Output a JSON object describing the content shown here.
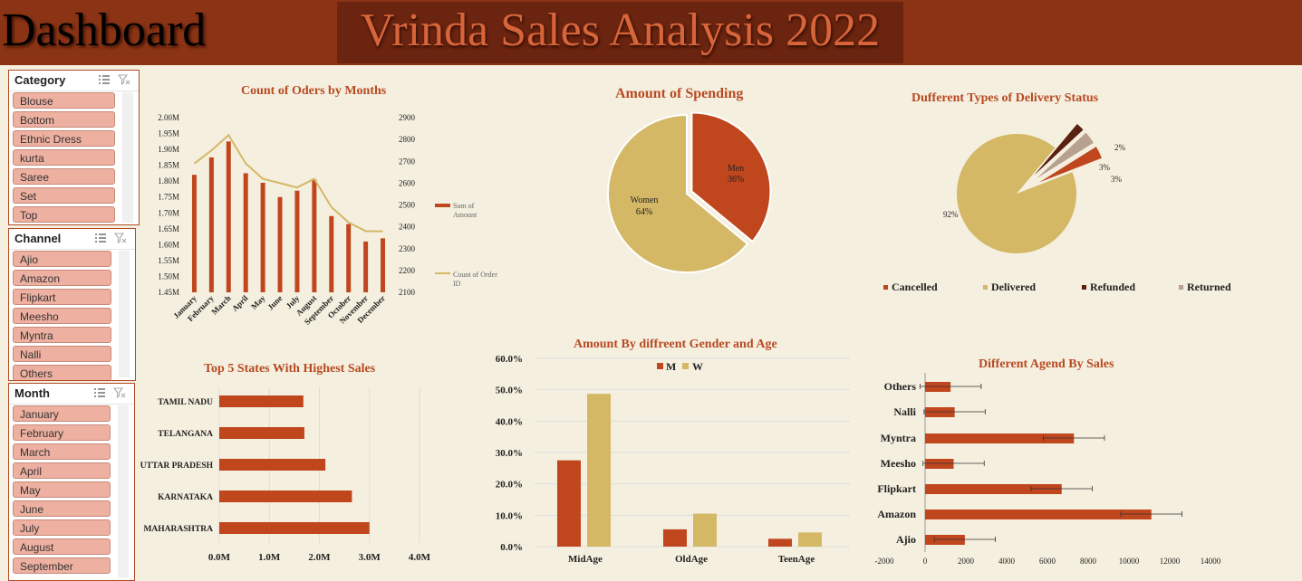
{
  "header": {
    "dashboard_label": "Dashboard",
    "title": "Vrinda Sales Analysis 2022"
  },
  "colors": {
    "rust": "#c0461e",
    "tan": "#d4b866",
    "dark": "#5a2010",
    "grey": "#b8a090",
    "header": "#8b3415",
    "item": "#eeb0a0"
  },
  "slicers": {
    "category": {
      "title": "Category",
      "items": [
        "Blouse",
        "Bottom",
        "Ethnic Dress",
        "kurta",
        "Saree",
        "Set",
        "Top"
      ]
    },
    "channel": {
      "title": "Channel",
      "items": [
        "Ajio",
        "Amazon",
        "Flipkart",
        "Meesho",
        "Myntra",
        "Nalli",
        "Others"
      ]
    },
    "month": {
      "title": "Month",
      "items": [
        "January",
        "February",
        "March",
        "April",
        "May",
        "June",
        "July",
        "August",
        "September"
      ]
    }
  },
  "chart_data": [
    {
      "type": "bar",
      "title": "Count of Oders by Months",
      "categories": [
        "January",
        "February",
        "March",
        "April",
        "May",
        "June",
        "July",
        "August",
        "September",
        "October",
        "November",
        "December"
      ],
      "series": [
        {
          "name": "Sum of Amount",
          "type": "bar",
          "axis": "left",
          "values": [
            1.82,
            1.875,
            1.925,
            1.825,
            1.795,
            1.75,
            1.77,
            1.805,
            1.69,
            1.665,
            1.61,
            1.62
          ]
        },
        {
          "name": "Count of Order ID",
          "type": "line",
          "axis": "right",
          "values": [
            2690,
            2750,
            2820,
            2690,
            2620,
            2600,
            2580,
            2620,
            2490,
            2420,
            2380,
            2380
          ]
        }
      ],
      "y_left": {
        "ticks": [
          "1.45M",
          "1.50M",
          "1.55M",
          "1.60M",
          "1.65M",
          "1.70M",
          "1.75M",
          "1.80M",
          "1.85M",
          "1.90M",
          "1.95M",
          "2.00M"
        ],
        "ylim": [
          1.45,
          2.0
        ]
      },
      "y_right": {
        "ticks": [
          "2100",
          "2200",
          "2300",
          "2400",
          "2500",
          "2600",
          "2700",
          "2800",
          "2900"
        ],
        "ylim": [
          2100,
          2900
        ]
      },
      "legend": [
        {
          "lines": [
            "Sum of",
            "Amount"
          ]
        },
        {
          "lines": [
            "Count of Order",
            "ID"
          ]
        }
      ]
    },
    {
      "type": "pie",
      "title": "Amount of Spending",
      "slices": [
        {
          "label": "Men",
          "pct": "36%",
          "value": 36
        },
        {
          "label": "Women",
          "pct": "64%",
          "value": 64
        }
      ]
    },
    {
      "type": "pie",
      "title": "Dufferent Types of Delivery Status",
      "slices": [
        {
          "label": "Delivered",
          "pct": "92%",
          "value": 92
        },
        {
          "label": "Cancelled",
          "pct": "3%",
          "value": 3
        },
        {
          "label": "Returned",
          "pct": "3%",
          "value": 3
        },
        {
          "label": "Refunded",
          "pct": "2%",
          "value": 2
        }
      ],
      "legend": [
        "Cancelled",
        "Delivered",
        "Refunded",
        "Returned"
      ]
    },
    {
      "type": "bar",
      "orientation": "horizontal",
      "title": "Top 5 States With Highest Sales",
      "categories": [
        "TAMIL NADU",
        "TELANGANA",
        "UTTAR PRADESH",
        "KARNATAKA",
        "MAHARASHTRA"
      ],
      "values": [
        1.68,
        1.7,
        2.12,
        2.65,
        3.0
      ],
      "ticks": [
        "0.0M",
        "1.0M",
        "2.0M",
        "3.0M",
        "4.0M"
      ],
      "xlim": [
        0,
        4
      ]
    },
    {
      "type": "bar",
      "title": "Amount By diffreent Gender and Age",
      "categories": [
        "MidAge",
        "OldAge",
        "TeenAge"
      ],
      "series": [
        {
          "name": "M",
          "values": [
            27.5,
            5.5,
            2.5
          ]
        },
        {
          "name": "W",
          "values": [
            48.7,
            10.5,
            4.5
          ]
        }
      ],
      "ticks": [
        "0.0%",
        "10.0%",
        "20.0%",
        "30.0%",
        "40.0%",
        "50.0%",
        "60.0%"
      ],
      "ylim": [
        0,
        60
      ]
    },
    {
      "type": "bar",
      "orientation": "horizontal",
      "title": "Different Agend By Sales",
      "categories": [
        "Others",
        "Nalli",
        "Myntra",
        "Meesho",
        "Flipkart",
        "Amazon",
        "Ajio"
      ],
      "values": [
        1250,
        1450,
        7300,
        1400,
        6700,
        11100,
        1950
      ],
      "error": [
        1500,
        1500,
        1500,
        1500,
        1500,
        1500,
        1500
      ],
      "ticks": [
        "-2000",
        "0",
        "2000",
        "4000",
        "6000",
        "8000",
        "10000",
        "12000",
        "14000"
      ],
      "xlim": [
        -2000,
        14000
      ]
    }
  ]
}
